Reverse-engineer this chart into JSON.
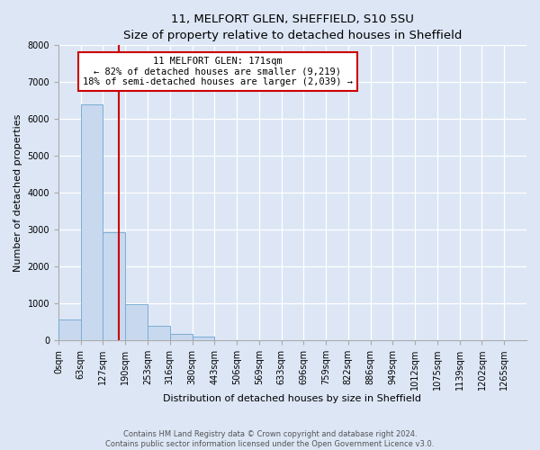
{
  "title": "11, MELFORT GLEN, SHEFFIELD, S10 5SU",
  "subtitle": "Size of property relative to detached houses in Sheffield",
  "xlabel": "Distribution of detached houses by size in Sheffield",
  "ylabel": "Number of detached properties",
  "bar_labels": [
    "0sqm",
    "63sqm",
    "127sqm",
    "190sqm",
    "253sqm",
    "316sqm",
    "380sqm",
    "443sqm",
    "506sqm",
    "569sqm",
    "633sqm",
    "696sqm",
    "759sqm",
    "822sqm",
    "886sqm",
    "949sqm",
    "1012sqm",
    "1075sqm",
    "1139sqm",
    "1202sqm",
    "1265sqm"
  ],
  "bar_values": [
    560,
    6380,
    2920,
    980,
    390,
    175,
    95,
    0,
    0,
    0,
    0,
    0,
    0,
    0,
    0,
    0,
    0,
    0,
    0,
    0,
    0
  ],
  "bar_color": "#c8d8ee",
  "bar_edge_color": "#7aadd4",
  "property_line_x": 2.72,
  "bin_width": 1,
  "ylim": [
    0,
    8000
  ],
  "yticks": [
    0,
    1000,
    2000,
    3000,
    4000,
    5000,
    6000,
    7000,
    8000
  ],
  "annotation_title": "11 MELFORT GLEN: 171sqm",
  "annotation_line1": "← 82% of detached houses are smaller (9,219)",
  "annotation_line2": "18% of semi-detached houses are larger (2,039) →",
  "annotation_box_color": "#ffffff",
  "annotation_box_edge": "#cc0000",
  "vline_color": "#cc0000",
  "footer1": "Contains HM Land Registry data © Crown copyright and database right 2024.",
  "footer2": "Contains public sector information licensed under the Open Government Licence v3.0.",
  "fig_bg_color": "#dce6f5",
  "plot_bg_color": "#dce6f5",
  "n_bins": 21,
  "title_fontsize": 9.5,
  "subtitle_fontsize": 8.5,
  "axis_label_fontsize": 8,
  "tick_fontsize": 7,
  "annotation_fontsize": 7.5,
  "footer_fontsize": 6
}
